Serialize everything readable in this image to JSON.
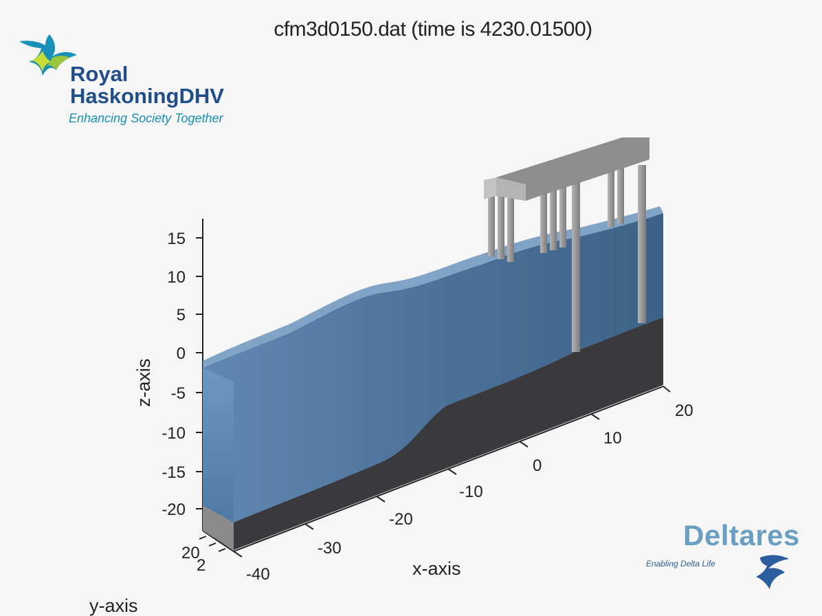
{
  "plot": {
    "title": "cfm3d0150.dat (time is 4230.01500)",
    "xlabel": "x-axis",
    "ylabel": "y-axis",
    "zlabel": "z-axis",
    "z_ticks": [
      "15",
      "10",
      "5",
      "0",
      "-5",
      "-10",
      "-15",
      "-20"
    ],
    "x_ticks": [
      "20",
      "10",
      "0",
      "-10",
      "-20",
      "-30",
      "-40"
    ],
    "y_ticks": [
      "20",
      "2"
    ]
  },
  "logos": {
    "left": {
      "line1": "Royal",
      "line2": "HaskoningDHV",
      "tagline": "Enhancing Society Together"
    },
    "right": {
      "name": "Deltares",
      "tagline": "Enabling Delta Life"
    }
  },
  "colors": {
    "water": "#5d8ab8",
    "water_dark": "#3e5f86",
    "seabed": "#3a3a3c",
    "structure": "#8c8c8c",
    "rhdhv_blue": "#1f4e8c",
    "rhdhv_green": "#9bc53d",
    "rhdhv_teal": "#1791b8",
    "deltares_blue": "#6a9fc4"
  }
}
